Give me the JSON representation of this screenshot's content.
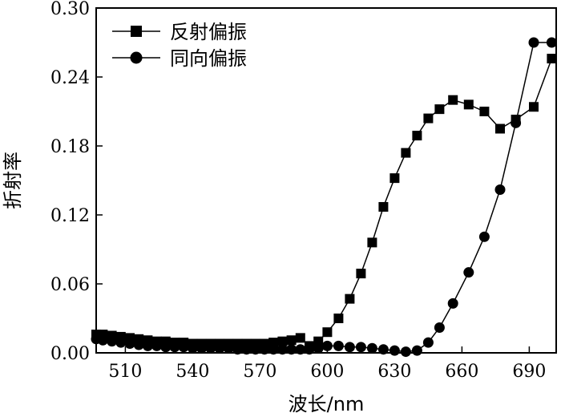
{
  "chart_data": {
    "type": "line",
    "xlabel": "波长/nm",
    "ylabel": "折射率",
    "xlim": [
      497,
      702
    ],
    "ylim": [
      0,
      0.3
    ],
    "xticks": [
      510,
      540,
      570,
      600,
      630,
      660,
      690
    ],
    "xtick_labels": [
      "510",
      "540",
      "570",
      "600",
      "630",
      "660",
      "690"
    ],
    "yticks": [
      0,
      0.06,
      0.12,
      0.18,
      0.24,
      0.3
    ],
    "ytick_labels": [
      "0.00",
      "0.06",
      "0.12",
      "0.18",
      "0.24",
      "0.30"
    ],
    "grid": false,
    "legend_position": "top-left",
    "series": [
      {
        "name": "反射偏振",
        "marker": "square",
        "x": [
          497,
          500,
          504,
          508,
          512,
          516,
          520,
          524,
          528,
          532,
          536,
          540,
          544,
          548,
          552,
          556,
          560,
          564,
          568,
          572,
          576,
          580,
          584,
          588,
          592,
          596,
          600,
          605,
          610,
          615,
          620,
          625,
          630,
          635,
          640,
          645,
          650,
          656,
          663,
          670,
          677,
          684,
          692,
          700
        ],
        "y": [
          0.016,
          0.016,
          0.015,
          0.014,
          0.013,
          0.012,
          0.011,
          0.01,
          0.01,
          0.009,
          0.009,
          0.008,
          0.008,
          0.008,
          0.008,
          0.008,
          0.008,
          0.008,
          0.008,
          0.008,
          0.009,
          0.01,
          0.011,
          0.013,
          0.006,
          0.01,
          0.018,
          0.03,
          0.047,
          0.069,
          0.096,
          0.127,
          0.152,
          0.174,
          0.189,
          0.204,
          0.212,
          0.22,
          0.216,
          0.21,
          0.195,
          0.203,
          0.214,
          0.256
        ]
      },
      {
        "name": "同向偏振",
        "marker": "circle",
        "x": [
          497,
          500,
          504,
          508,
          512,
          516,
          520,
          524,
          528,
          532,
          536,
          540,
          544,
          548,
          552,
          556,
          560,
          564,
          568,
          572,
          576,
          580,
          584,
          588,
          592,
          596,
          600,
          605,
          610,
          615,
          620,
          625,
          630,
          635,
          640,
          645,
          650,
          656,
          663,
          670,
          677,
          684,
          692,
          700
        ],
        "y": [
          0.012,
          0.011,
          0.01,
          0.009,
          0.008,
          0.007,
          0.006,
          0.006,
          0.005,
          0.005,
          0.005,
          0.004,
          0.004,
          0.004,
          0.004,
          0.004,
          0.003,
          0.003,
          0.003,
          0.003,
          0.003,
          0.003,
          0.003,
          0.003,
          0.003,
          0.004,
          0.006,
          0.006,
          0.005,
          0.005,
          0.004,
          0.003,
          0.002,
          0.001,
          0.002,
          0.009,
          0.022,
          0.043,
          0.07,
          0.101,
          0.142,
          0.2,
          0.27,
          0.27
        ]
      }
    ]
  }
}
